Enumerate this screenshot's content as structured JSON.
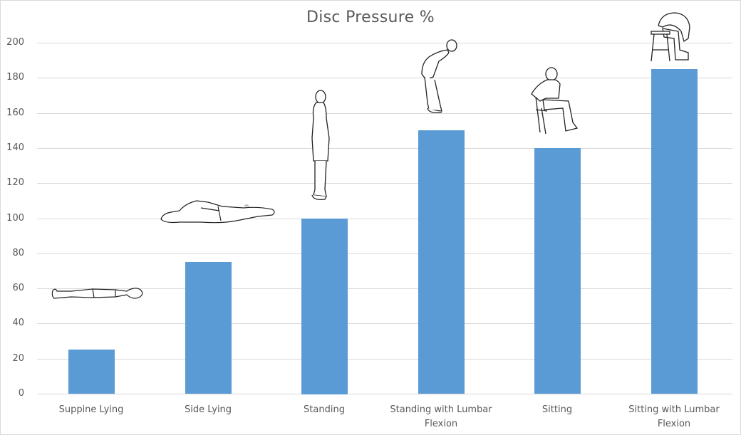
{
  "chart_data": {
    "type": "bar",
    "title": "Disc Pressure %",
    "xlabel": "",
    "ylabel": "",
    "categories": [
      "Suppine Lying",
      "Side Lying",
      "Standing",
      "Standing with Lumbar Flexion",
      "Sitting",
      "Sitting with Lumbar Flexion"
    ],
    "values": [
      25,
      75,
      100,
      150,
      140,
      185
    ],
    "ylim": [
      0,
      200
    ],
    "yticks": [
      0,
      20,
      40,
      60,
      80,
      100,
      120,
      140,
      160,
      180,
      200
    ],
    "grid": true,
    "legend": null,
    "bar_color": "#5b9bd5",
    "annotations": [
      "supine-lying-figure",
      "side-lying-figure",
      "standing-figure",
      "standing-flexion-figure",
      "sitting-figure",
      "sitting-flexion-figure"
    ]
  },
  "labels": {
    "title": "Disc Pressure %",
    "yticks": [
      "0",
      "20",
      "40",
      "60",
      "80",
      "100",
      "120",
      "140",
      "160",
      "180",
      "200"
    ],
    "categories": [
      {
        "line1": "Suppine Lying",
        "line2": ""
      },
      {
        "line1": "Side Lying",
        "line2": ""
      },
      {
        "line1": "Standing",
        "line2": ""
      },
      {
        "line1": "Standing with Lumbar",
        "line2": "Flexion"
      },
      {
        "line1": "Sitting",
        "line2": ""
      },
      {
        "line1": "Sitting with Lumbar",
        "line2": "Flexion"
      }
    ]
  }
}
